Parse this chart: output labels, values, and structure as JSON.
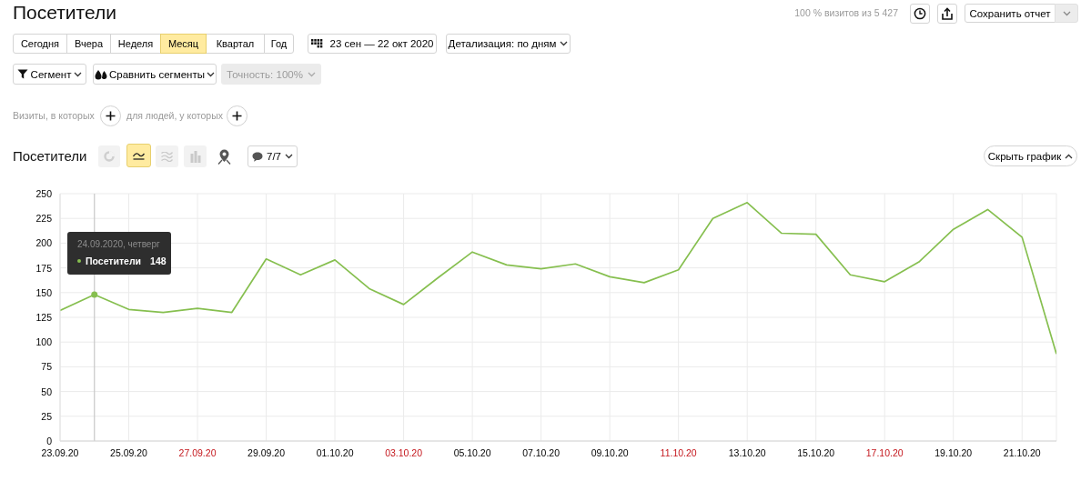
{
  "chart_data": {
    "type": "line",
    "title": "Посетители",
    "x": [
      "2020-09-23",
      "2020-09-24",
      "2020-09-25",
      "2020-09-26",
      "2020-09-27",
      "2020-09-28",
      "2020-09-29",
      "2020-09-30",
      "2020-10-01",
      "2020-10-02",
      "2020-10-03",
      "2020-10-04",
      "2020-10-05",
      "2020-10-06",
      "2020-10-07",
      "2020-10-08",
      "2020-10-09",
      "2020-10-10",
      "2020-10-11",
      "2020-10-12",
      "2020-10-13",
      "2020-10-14",
      "2020-10-15",
      "2020-10-16",
      "2020-10-17",
      "2020-10-18",
      "2020-10-19",
      "2020-10-20",
      "2020-10-21",
      "2020-10-22"
    ],
    "series": [
      {
        "name": "Посетители",
        "color": "#86bf4f",
        "values": [
          132,
          148,
          133,
          130,
          134,
          130,
          184,
          168,
          183,
          154,
          138,
          165,
          191,
          178,
          174,
          179,
          166,
          160,
          173,
          225,
          241,
          210,
          209,
          168,
          161,
          181,
          214,
          234,
          206,
          88
        ]
      },
      {
        "type": "scatter",
        "color": "#86bf4f",
        "marker": "circle",
        "x": [
          "2020-09-24"
        ],
        "values": [
          148
        ]
      }
    ],
    "xlim": [
      "2020-09-23",
      "2020-10-22"
    ],
    "xticks": [
      {
        "value": "2020-09-23",
        "label": "23.09.20"
      },
      {
        "value": "2020-09-25",
        "label": "25.09.20"
      },
      {
        "value": "2020-09-27",
        "label": "27.09.20"
      },
      {
        "value": "2020-09-29",
        "label": "29.09.20"
      },
      {
        "value": "2020-10-01",
        "label": "01.10.20"
      },
      {
        "value": "2020-10-03",
        "label": "03.10.20"
      },
      {
        "value": "2020-10-05",
        "label": "05.10.20"
      },
      {
        "value": "2020-10-07",
        "label": "07.10.20"
      },
      {
        "value": "2020-10-09",
        "label": "09.10.20"
      },
      {
        "value": "2020-10-11",
        "label": "11.10.20"
      },
      {
        "value": "2020-10-13",
        "label": "13.10.20"
      },
      {
        "value": "2020-10-15",
        "label": "15.10.20"
      },
      {
        "value": "2020-10-17",
        "label": "17.10.20"
      },
      {
        "value": "2020-10-19",
        "label": "19.10.20"
      },
      {
        "value": "2020-10-21",
        "label": "21.10.20"
      }
    ],
    "ylim": [
      0,
      250
    ],
    "yticks": [
      0,
      25,
      50,
      75,
      100,
      125,
      150,
      175,
      200,
      225,
      250
    ],
    "grid": true,
    "legend": "top left",
    "ref_lines": [
      {
        "axis": "x",
        "value": "2020-09-24",
        "color": "#c8c8c8"
      }
    ],
    "annotations": [
      "100 % визитов из 5 427",
      "Сохранить отчет",
      "Сегодня",
      "Вчера",
      "Неделя",
      "Месяц",
      "Квартал",
      "Год",
      "23 сен — 22 окт 2020",
      "Детализация: по дням",
      "Сегмент",
      "Сравнить сегменты",
      "Точность: 100%",
      "Визиты, в которых",
      "для людей, у которых",
      "Посетители",
      "7/7",
      "Скрыть график",
      "24.09.2020, четверг",
      "148"
    ]
  }
}
